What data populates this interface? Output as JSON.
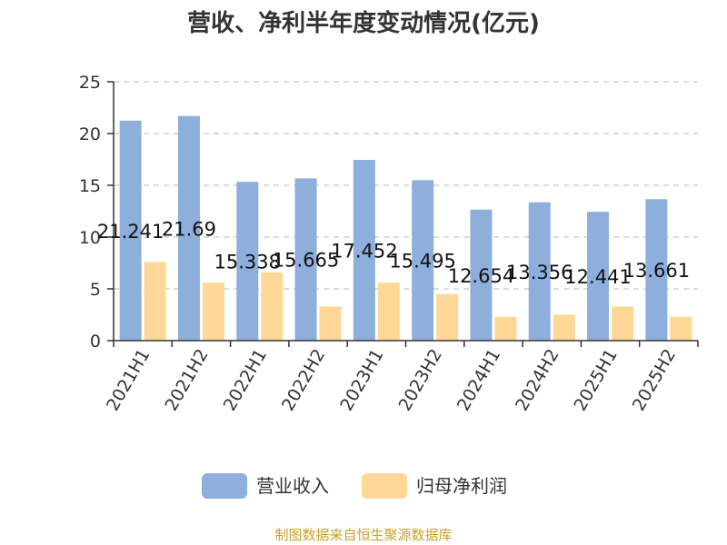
{
  "chart_data": {
    "type": "bar",
    "title": "营收、净利半年度变动情况(亿元)",
    "xlabel": "",
    "ylabel": "",
    "categories": [
      "2021H1",
      "2021H2",
      "2022H1",
      "2022H2",
      "2023H1",
      "2023H2",
      "2024H1",
      "2024H2",
      "2025H1",
      "2025H2"
    ],
    "series": [
      {
        "name": "营业收入",
        "color": "#8eaedb",
        "values": [
          21.241,
          21.69,
          15.338,
          15.665,
          17.452,
          15.495,
          12.654,
          13.356,
          12.441,
          13.661
        ],
        "labels": [
          "21.241",
          "21.69",
          "15.338",
          "15.665",
          "17.452",
          "15.495",
          "12.654",
          "13.356",
          "12.441",
          "13.661"
        ]
      },
      {
        "name": "归母净利润",
        "color": "#ffd897",
        "values": [
          7.6,
          5.6,
          6.6,
          3.3,
          5.6,
          4.5,
          2.3,
          2.5,
          3.3,
          2.3
        ]
      }
    ],
    "ylim": [
      0,
      25
    ],
    "yticks": [
      0,
      5,
      10,
      15,
      20,
      25
    ],
    "grid": true,
    "legend": "bottom-center"
  },
  "source": "制图数据来自恒生聚源数据库"
}
